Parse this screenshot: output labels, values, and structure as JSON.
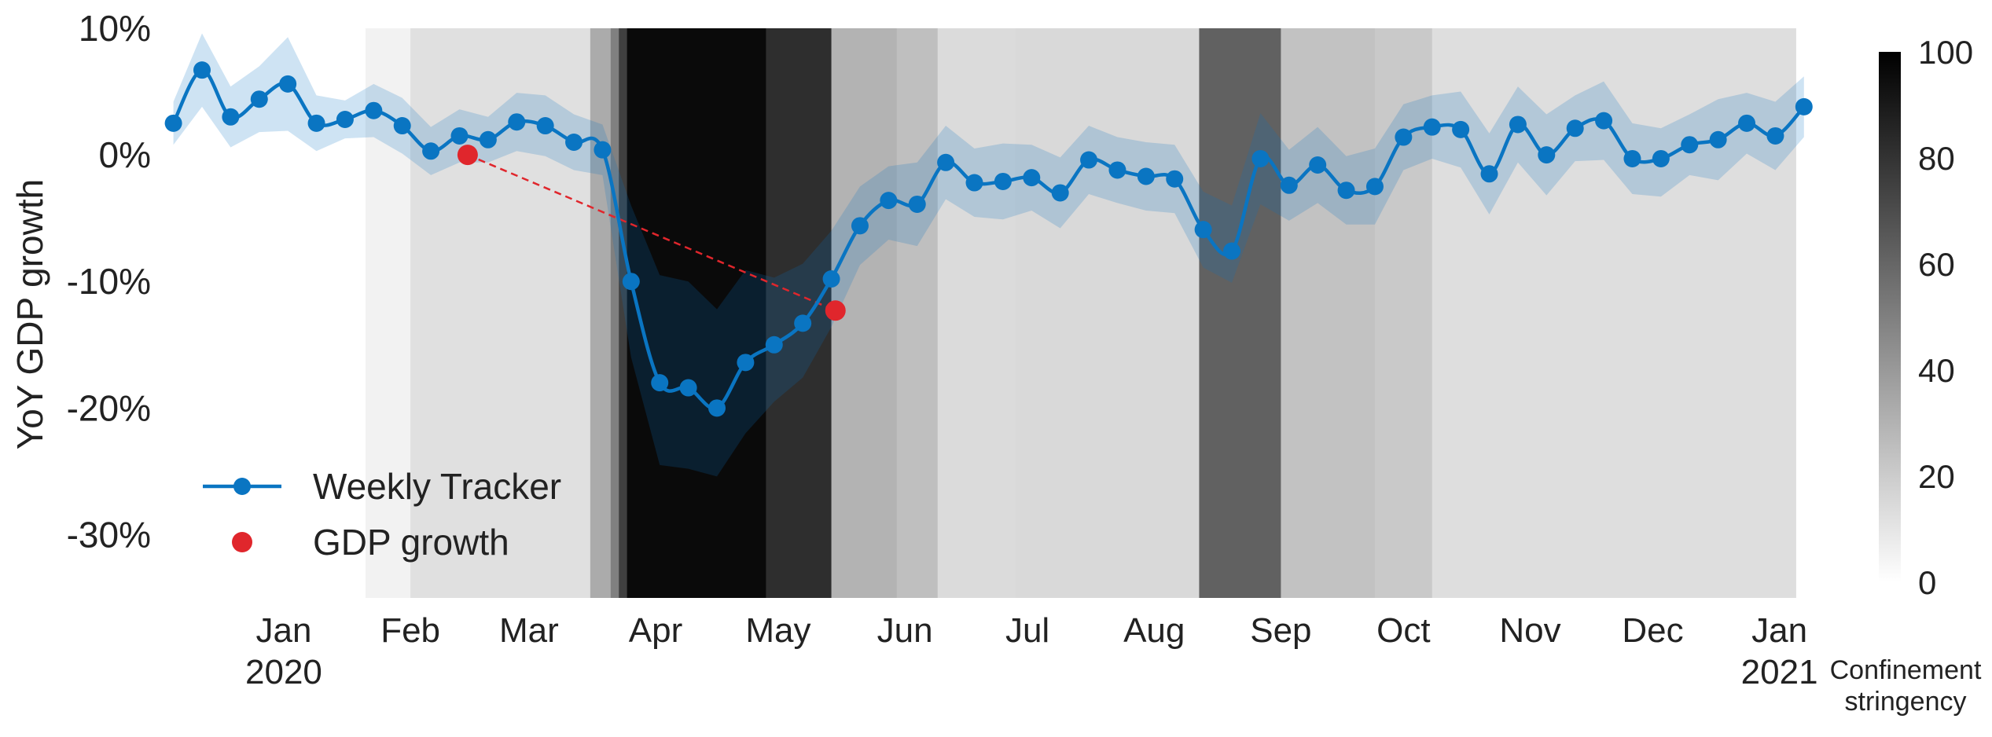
{
  "chart_data": {
    "type": "line",
    "ylabel": "YoY GDP growth",
    "ylim": [
      -35,
      10
    ],
    "yticks": [
      10,
      0,
      -10,
      -20,
      -30
    ],
    "ytick_labels": [
      "10%",
      "0%",
      "-10%",
      "-20%",
      "-30%"
    ],
    "xlim": [
      "2019-12-02",
      "2021-01-08"
    ],
    "x_month_ticks": [
      {
        "date": "2020-01-01",
        "label": "Jan",
        "sub": "2020"
      },
      {
        "date": "2020-02-01",
        "label": "Feb",
        "sub": ""
      },
      {
        "date": "2020-03-01",
        "label": "Mar",
        "sub": ""
      },
      {
        "date": "2020-04-01",
        "label": "Apr",
        "sub": ""
      },
      {
        "date": "2020-05-01",
        "label": "May",
        "sub": ""
      },
      {
        "date": "2020-06-01",
        "label": "Jun",
        "sub": ""
      },
      {
        "date": "2020-07-01",
        "label": "Jul",
        "sub": ""
      },
      {
        "date": "2020-08-01",
        "label": "Aug",
        "sub": ""
      },
      {
        "date": "2020-09-01",
        "label": "Sep",
        "sub": ""
      },
      {
        "date": "2020-10-01",
        "label": "Oct",
        "sub": ""
      },
      {
        "date": "2020-11-01",
        "label": "Nov",
        "sub": ""
      },
      {
        "date": "2020-12-01",
        "label": "Dec",
        "sub": ""
      },
      {
        "date": "2021-01-01",
        "label": "Jan",
        "sub": "2021"
      }
    ],
    "grid": false,
    "legend_placement": "bottom-left",
    "legend": [
      {
        "label": "Weekly Tracker",
        "color": "#0a75c2",
        "marker": "line-dot"
      },
      {
        "label": "GDP growth",
        "color": "#e0262c",
        "marker": "dot"
      }
    ],
    "colorbar": {
      "label_line1": "Confinement",
      "label_line2": "stringency",
      "range": [
        0,
        100
      ],
      "ticks": [
        0,
        20,
        40,
        60,
        80,
        100
      ]
    },
    "stringency_bands": [
      {
        "start": "2020-01-21",
        "end": "2020-02-01",
        "value": 5
      },
      {
        "start": "2020-02-01",
        "end": "2020-03-16",
        "value": 12
      },
      {
        "start": "2020-03-16",
        "end": "2020-03-21",
        "value": 33
      },
      {
        "start": "2020-03-21",
        "end": "2020-03-23",
        "value": 50
      },
      {
        "start": "2020-03-23",
        "end": "2020-03-25",
        "value": 75
      },
      {
        "start": "2020-03-25",
        "end": "2020-04-28",
        "value": 96
      },
      {
        "start": "2020-04-28",
        "end": "2020-05-14",
        "value": 82
      },
      {
        "start": "2020-05-14",
        "end": "2020-05-30",
        "value": 30
      },
      {
        "start": "2020-05-30",
        "end": "2020-06-09",
        "value": 25
      },
      {
        "start": "2020-06-09",
        "end": "2020-06-28",
        "value": 14
      },
      {
        "start": "2020-06-28",
        "end": "2020-08-12",
        "value": 15
      },
      {
        "start": "2020-08-12",
        "end": "2020-09-01",
        "value": 62
      },
      {
        "start": "2020-09-01",
        "end": "2020-09-24",
        "value": 24
      },
      {
        "start": "2020-09-24",
        "end": "2020-10-08",
        "value": 21
      },
      {
        "start": "2020-10-08",
        "end": "2021-01-05",
        "value": 13
      }
    ],
    "series": [
      {
        "name": "Weekly Tracker",
        "color": "#0a75c2",
        "x": [
          "2019-12-05",
          "2019-12-12",
          "2019-12-19",
          "2019-12-26",
          "2020-01-02",
          "2020-01-09",
          "2020-01-16",
          "2020-01-23",
          "2020-01-30",
          "2020-02-06",
          "2020-02-13",
          "2020-02-20",
          "2020-02-27",
          "2020-03-05",
          "2020-03-12",
          "2020-03-19",
          "2020-03-26",
          "2020-04-02",
          "2020-04-09",
          "2020-04-16",
          "2020-04-23",
          "2020-04-30",
          "2020-05-07",
          "2020-05-14",
          "2020-05-21",
          "2020-05-28",
          "2020-06-04",
          "2020-06-11",
          "2020-06-18",
          "2020-06-25",
          "2020-07-02",
          "2020-07-09",
          "2020-07-16",
          "2020-07-23",
          "2020-07-30",
          "2020-08-06",
          "2020-08-13",
          "2020-08-20",
          "2020-08-27",
          "2020-09-03",
          "2020-09-10",
          "2020-09-17",
          "2020-09-24",
          "2020-10-01",
          "2020-10-08",
          "2020-10-15",
          "2020-10-22",
          "2020-10-29",
          "2020-11-05",
          "2020-11-12",
          "2020-11-19",
          "2020-11-26",
          "2020-12-03",
          "2020-12-10",
          "2020-12-17",
          "2020-12-24",
          "2020-12-31",
          "2021-01-07"
        ],
        "y": [
          2.5,
          6.7,
          3.0,
          4.4,
          5.6,
          2.5,
          2.8,
          3.5,
          2.3,
          0.3,
          1.5,
          1.2,
          2.6,
          2.3,
          1.0,
          0.4,
          -10.0,
          -18.0,
          -18.4,
          -20.0,
          -16.4,
          -15.0,
          -13.3,
          -9.8,
          -5.6,
          -3.6,
          -3.9,
          -0.6,
          -2.2,
          -2.1,
          -1.8,
          -3.0,
          -0.4,
          -1.2,
          -1.7,
          -1.9,
          -5.9,
          -7.6,
          -0.3,
          -2.4,
          -0.8,
          -2.8,
          -2.5,
          1.4,
          2.2,
          2.0,
          -1.5,
          2.4,
          0.0,
          2.1,
          2.7,
          -0.3,
          -0.3,
          0.8,
          1.2,
          2.5,
          1.5,
          3.8
        ],
        "band_upper": [
          4.2,
          9.6,
          5.4,
          7.0,
          9.3,
          4.7,
          4.3,
          5.6,
          4.5,
          2.2,
          3.6,
          3.0,
          4.9,
          4.7,
          3.2,
          2.4,
          -4.0,
          -9.5,
          -10.0,
          -12.2,
          -9.1,
          -9.7,
          -8.6,
          -6.0,
          -2.5,
          -0.9,
          -0.6,
          2.3,
          0.5,
          0.9,
          0.8,
          -0.2,
          2.3,
          1.4,
          1.0,
          0.8,
          -2.9,
          -4.0,
          3.3,
          0.4,
          2.2,
          -0.1,
          0.5,
          4.0,
          4.7,
          5.0,
          1.7,
          5.4,
          3.2,
          4.7,
          5.8,
          2.5,
          2.1,
          3.2,
          4.4,
          4.9,
          4.2,
          6.2
        ],
        "band_lower": [
          0.8,
          3.8,
          0.6,
          1.8,
          1.9,
          0.3,
          1.3,
          1.4,
          0.1,
          -1.6,
          -0.6,
          -0.6,
          0.3,
          -0.1,
          -1.2,
          -1.6,
          -16.0,
          -24.5,
          -24.8,
          -25.4,
          -22.0,
          -19.5,
          -17.6,
          -13.6,
          -8.7,
          -6.7,
          -7.2,
          -3.5,
          -4.9,
          -5.1,
          -4.4,
          -5.8,
          -3.1,
          -3.8,
          -4.4,
          -4.6,
          -8.9,
          -10.1,
          -3.9,
          -5.2,
          -3.8,
          -5.5,
          -5.5,
          -1.2,
          -0.3,
          -1.0,
          -4.7,
          -0.6,
          -3.2,
          -0.5,
          -0.4,
          -3.1,
          -3.3,
          -1.6,
          -2.0,
          0.1,
          -1.2,
          1.4
        ]
      },
      {
        "name": "GDP growth",
        "color": "#e0262c",
        "x": [
          "2020-02-15",
          "2020-05-15"
        ],
        "y": [
          0.0,
          -12.3
        ]
      }
    ]
  }
}
